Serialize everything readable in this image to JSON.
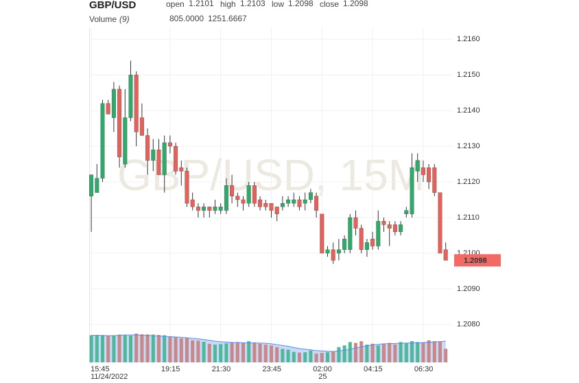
{
  "chart_data": {
    "type": "candlestick",
    "title": "GBP/USD",
    "watermark": "GBP/USD, 15M",
    "header": [
      {
        "label": "open",
        "value": "1.2101"
      },
      {
        "label": "high",
        "value": "1.2103"
      },
      {
        "label": "low",
        "value": "1.2098"
      },
      {
        "label": "close",
        "value": "1.2098"
      }
    ],
    "volume_label": "Volume",
    "volume_period": "(9)",
    "volume_value": "805.0000",
    "volume_ma_value": "1251.6667",
    "categories": [
      "15:45",
      null,
      null,
      null,
      null,
      null,
      null,
      null,
      null,
      null,
      null,
      null,
      null,
      null,
      "19:15",
      null,
      null,
      null,
      null,
      null,
      null,
      null,
      null,
      "21:30",
      null,
      null,
      null,
      null,
      null,
      null,
      null,
      null,
      "23:45",
      null,
      null,
      null,
      null,
      null,
      null,
      null,
      null,
      "02:00",
      null,
      null,
      null,
      null,
      null,
      null,
      null,
      null,
      "04:15",
      null,
      null,
      null,
      null,
      null,
      null,
      null,
      null,
      "06:30",
      null,
      null,
      null,
      null
    ],
    "dates": [
      "11/24/2022",
      null,
      null,
      null,
      null,
      null,
      null,
      null,
      null,
      null,
      null,
      null,
      null,
      null,
      null,
      null,
      null,
      null,
      null,
      null,
      null,
      null,
      null,
      null,
      null,
      null,
      null,
      null,
      null,
      null,
      null,
      null,
      null,
      null,
      null,
      null,
      null,
      null,
      null,
      null,
      null,
      "25",
      null,
      null,
      null,
      null,
      null,
      null,
      null,
      null,
      null,
      null,
      null,
      null,
      null,
      null,
      null,
      null,
      null,
      null,
      null,
      null,
      null,
      null
    ],
    "open": [
      1.2116,
      1.2117,
      1.2121,
      1.2142,
      1.2138,
      1.2146,
      1.2125,
      1.2138,
      1.215,
      1.2138,
      1.2133,
      1.2126,
      1.2129,
      1.2122,
      1.2131,
      1.213,
      1.2124,
      1.2123,
      1.2115,
      1.2113,
      1.2112,
      1.2113,
      1.2112,
      1.2112,
      1.2112,
      1.2119,
      1.2116,
      1.2115,
      1.2114,
      1.2119,
      1.2115,
      1.2114,
      1.2114,
      1.2113,
      1.2113,
      1.2114,
      1.2114,
      1.2115,
      1.2114,
      1.2115,
      1.2116,
      1.2111,
      1.21,
      1.2101,
      1.21,
      1.2101,
      1.2101,
      1.211,
      1.2107,
      1.2101,
      1.2104,
      1.2102,
      1.2109,
      1.2108,
      1.2108,
      1.2106,
      1.2111,
      1.2111,
      1.2123,
      1.2124,
      1.2124,
      1.2124,
      1.2117,
      1.2101
    ],
    "high": [
      1.2122,
      1.2125,
      1.2143,
      1.2143,
      1.2148,
      1.2147,
      1.2146,
      1.2154,
      1.2151,
      1.2142,
      1.2135,
      1.2132,
      1.2132,
      1.2133,
      1.2133,
      1.2131,
      1.2126,
      1.2124,
      1.2117,
      1.2114,
      1.2114,
      1.2113,
      1.2115,
      1.2114,
      1.2121,
      1.2122,
      1.2117,
      1.2116,
      1.212,
      1.212,
      1.2116,
      1.2115,
      1.2114,
      1.2113,
      1.2116,
      1.2116,
      1.2117,
      1.2116,
      1.2117,
      1.2118,
      1.2117,
      1.2111,
      1.2102,
      1.2103,
      1.2104,
      1.2105,
      1.2111,
      1.2112,
      1.2108,
      1.2104,
      1.2106,
      1.2112,
      1.211,
      1.2109,
      1.2109,
      1.2109,
      1.2113,
      1.2128,
      1.2128,
      1.2126,
      1.2125,
      1.2125,
      1.2117,
      1.2103
    ],
    "low": [
      1.2106,
      1.2117,
      1.212,
      1.2139,
      1.2134,
      1.2124,
      1.2124,
      1.2137,
      1.213,
      1.2133,
      1.2122,
      1.2123,
      1.2122,
      1.2117,
      1.2128,
      1.2122,
      1.2119,
      1.2113,
      1.2112,
      1.211,
      1.211,
      1.211,
      1.2111,
      1.2111,
      1.2111,
      1.2114,
      1.2113,
      1.2112,
      1.2113,
      1.2113,
      1.2112,
      1.2112,
      1.211,
      1.2109,
      1.2112,
      1.2113,
      1.2113,
      1.2112,
      1.2112,
      1.2114,
      1.211,
      1.21,
      1.2099,
      1.2097,
      1.2098,
      1.21,
      1.21,
      1.2105,
      1.21,
      1.2099,
      1.2101,
      1.2101,
      1.2106,
      1.2102,
      1.2105,
      1.2105,
      1.211,
      1.211,
      1.212,
      1.212,
      1.2118,
      1.2116,
      1.21,
      1.2098
    ],
    "close": [
      1.2122,
      1.2121,
      1.2142,
      1.2139,
      1.2146,
      1.2127,
      1.2138,
      1.215,
      1.2134,
      1.2133,
      1.2126,
      1.2129,
      1.2122,
      1.2131,
      1.213,
      1.2123,
      1.2123,
      1.2114,
      1.2113,
      1.2112,
      1.2113,
      1.2112,
      1.2113,
      1.2113,
      1.2119,
      1.2116,
      1.2115,
      1.2114,
      1.2119,
      1.2114,
      1.2113,
      1.2113,
      1.2112,
      1.2111,
      1.2114,
      1.2115,
      1.2115,
      1.2113,
      1.2115,
      1.2117,
      1.2112,
      1.21,
      1.2101,
      1.2098,
      1.2101,
      1.2104,
      1.211,
      1.2107,
      1.2101,
      1.2103,
      1.2102,
      1.2109,
      1.2108,
      1.2107,
      1.2106,
      1.2108,
      1.2112,
      1.2124,
      1.2126,
      1.2122,
      1.212,
      1.2117,
      1.21,
      1.2098
    ],
    "volume": [
      1600,
      1620,
      1610,
      1590,
      1600,
      1640,
      1620,
      1580,
      1700,
      1660,
      1650,
      1640,
      1620,
      1600,
      1540,
      1500,
      1420,
      1450,
      1300,
      1280,
      1220,
      1100,
      1050,
      1080,
      1120,
      1170,
      1200,
      1150,
      1250,
      1180,
      1100,
      1050,
      1000,
      900,
      800,
      750,
      620,
      580,
      600,
      700,
      520,
      560,
      600,
      640,
      900,
      1000,
      1200,
      1150,
      1250,
      1050,
      1100,
      1000,
      1080,
      1150,
      1060,
      1200,
      1120,
      1250,
      1200,
      1180,
      1300,
      1250,
      1220,
      805
    ],
    "volume_ma": [
      1600,
      1600,
      1590,
      1580,
      1580,
      1600,
      1620,
      1620,
      1620,
      1600,
      1590,
      1580,
      1560,
      1540,
      1520,
      1500,
      1480,
      1450,
      1420,
      1390,
      1350,
      1300,
      1250,
      1220,
      1200,
      1180,
      1170,
      1160,
      1150,
      1150,
      1140,
      1130,
      1100,
      1050,
      1000,
      950,
      880,
      820,
      780,
      740,
      700,
      680,
      660,
      650,
      680,
      720,
      780,
      850,
      920,
      980,
      1030,
      1070,
      1100,
      1110,
      1120,
      1130,
      1140,
      1150,
      1160,
      1170,
      1190,
      1210,
      1230,
      1251.6667
    ],
    "ylim": [
      1.2069,
      1.2171
    ],
    "yticks": [
      {
        "value": 1.208,
        "label": "1.2080"
      },
      {
        "value": 1.209,
        "label": "1.2090"
      },
      {
        "value": 1.21,
        "label": "1.2100"
      },
      {
        "value": 1.211,
        "label": "1.2110"
      },
      {
        "value": 1.212,
        "label": "1.2120"
      },
      {
        "value": 1.213,
        "label": "1.2130"
      },
      {
        "value": 1.214,
        "label": "1.2140"
      },
      {
        "value": 1.215,
        "label": "1.2150"
      },
      {
        "value": 1.216,
        "label": "1.2160"
      }
    ],
    "last_price": {
      "value": 1.2098,
      "label": "1.2098"
    },
    "grid": true,
    "up_color": "#2eaa6a",
    "down_color": "#e8605a",
    "volume_up_color": "#4fb89a",
    "volume_down_color": "#c98888",
    "ma_color": "#5b8de0",
    "ma_fill": "#bcd0f6",
    "header_color": "#e0504a",
    "ma_value_color": "#3b82d6"
  }
}
